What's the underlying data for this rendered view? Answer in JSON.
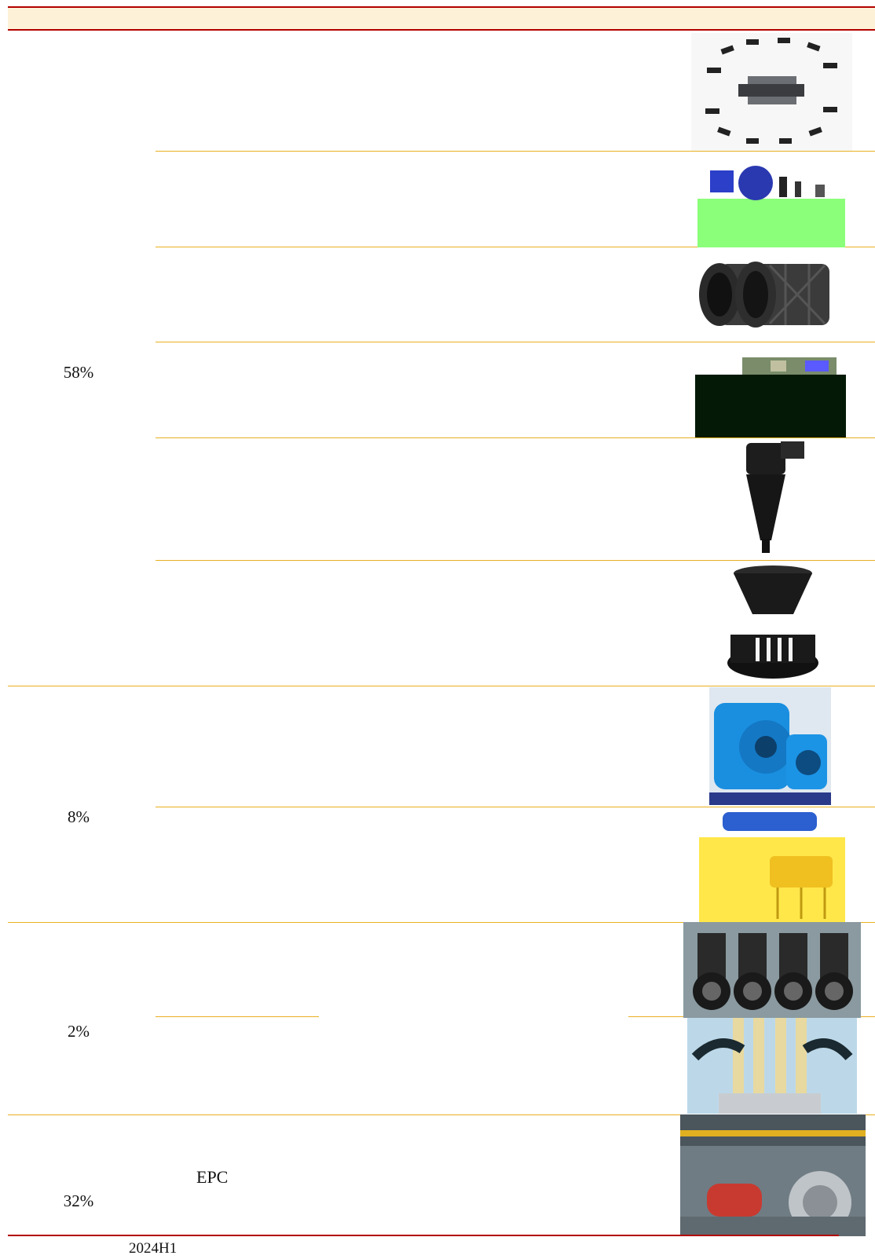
{
  "table": {
    "segments": [
      {
        "share": "58%"
      },
      {
        "share": "8%"
      },
      {
        "share": "2%"
      },
      {
        "share": "32%",
        "label": "EPC"
      }
    ]
  },
  "footer": {
    "note": "2024H1"
  },
  "images": [
    {
      "name": "mill-liner-exploded-photo",
      "icon": "exploded-liner-assembly"
    },
    {
      "name": "mill-drive-photo",
      "icon": "blue-drive-unit"
    },
    {
      "name": "trommel-screen-photo",
      "icon": "cylindrical-screen"
    },
    {
      "name": "crusher-parts-photo",
      "icon": "dark-parts"
    },
    {
      "name": "hydrocyclone-photo",
      "icon": "cyclone"
    },
    {
      "name": "impeller-photo",
      "icon": "impeller"
    },
    {
      "name": "slurry-pump-photo",
      "icon": "blue-pump"
    },
    {
      "name": "flotation-cell-photo",
      "icon": "yellow-cell"
    },
    {
      "name": "rubber-pipes-photo",
      "icon": "pipes"
    },
    {
      "name": "cyclone-cluster-photo",
      "icon": "manifold"
    },
    {
      "name": "mill-plant-photo",
      "icon": "plant-hall"
    }
  ]
}
